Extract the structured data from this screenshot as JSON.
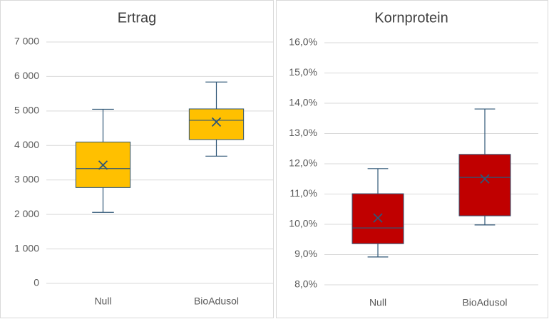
{
  "chart_data": [
    {
      "type": "box",
      "title": "Ertrag",
      "categories": [
        "Null",
        "BioAdusol"
      ],
      "color": "#ffc000",
      "line_color": "#2f5676",
      "boxes": [
        {
          "min": 2060,
          "q1": 2780,
          "median": 3330,
          "q3": 4100,
          "max": 5050,
          "mean": 3430
        },
        {
          "min": 3690,
          "q1": 4170,
          "median": 4730,
          "q3": 5060,
          "max": 5840,
          "mean": 4680
        }
      ],
      "ylim": [
        0,
        7000
      ],
      "yticks": [
        0,
        {
          "value": 1000,
          "label": "1 000"
        },
        {
          "value": 2000,
          "label": "2 000"
        },
        {
          "value": 3000,
          "label": "3 000"
        },
        {
          "value": 4000,
          "label": "4 000"
        },
        {
          "value": 5000,
          "label": "5 000"
        },
        {
          "value": 6000,
          "label": "6 000"
        },
        {
          "value": 7000,
          "label": "7 000"
        }
      ],
      "grid": true
    },
    {
      "type": "box",
      "title": "Kornprotein",
      "categories": [
        "Null",
        "BioAdusol"
      ],
      "color": "#c00000",
      "line_color": "#2f5676",
      "boxes": [
        {
          "min": 8.92,
          "q1": 9.36,
          "median": 9.88,
          "q3": 11.01,
          "max": 11.84,
          "mean": 10.21
        },
        {
          "min": 9.98,
          "q1": 10.28,
          "median": 11.55,
          "q3": 12.31,
          "max": 13.81,
          "mean": 11.5
        }
      ],
      "ylim": [
        8,
        16
      ],
      "yticks": [
        {
          "value": 8,
          "label": "8,0%"
        },
        {
          "value": 9,
          "label": "9,0%"
        },
        {
          "value": 10,
          "label": "10,0%"
        },
        {
          "value": 11,
          "label": "11,0%"
        },
        {
          "value": 12,
          "label": "12,0%"
        },
        {
          "value": 13,
          "label": "13,0%"
        },
        {
          "value": 14,
          "label": "14,0%"
        },
        {
          "value": 15,
          "label": "15,0%"
        },
        {
          "value": 16,
          "label": "16,0%"
        }
      ],
      "grid": true
    }
  ]
}
